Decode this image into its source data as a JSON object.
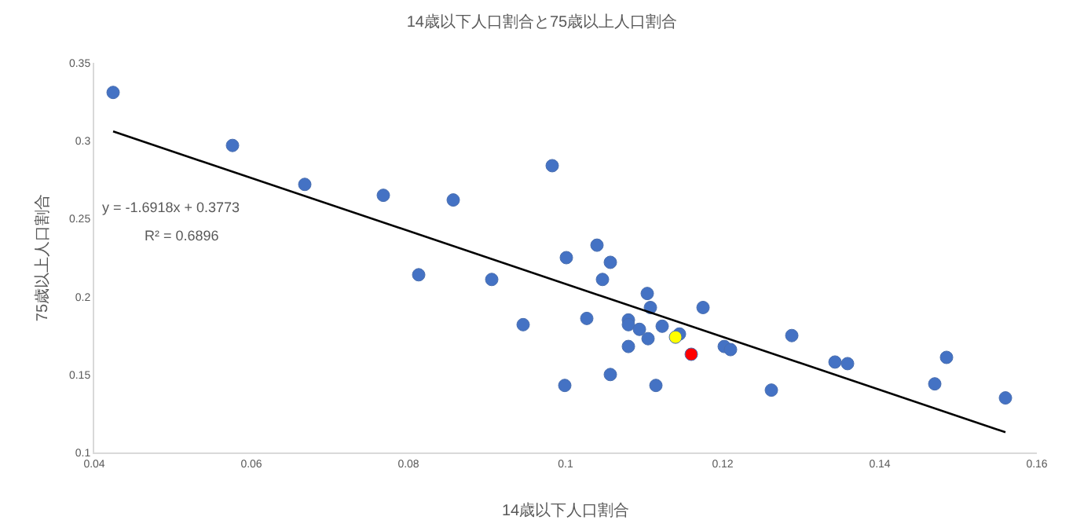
{
  "chart_data": {
    "type": "scatter",
    "title": "14歳以下人口割合と75歳以上人口割合",
    "xlabel": "14歳以下人口割合",
    "ylabel": "75歳以上人口割合",
    "xlim": [
      0.04,
      0.16
    ],
    "xticks": [
      0.04,
      0.06,
      0.08,
      0.1,
      0.12,
      0.14,
      0.16
    ],
    "ylim": [
      0.1,
      0.35
    ],
    "yticks": [
      0.1,
      0.15,
      0.2,
      0.25,
      0.3,
      0.35
    ],
    "grid": false,
    "marker": "circle",
    "series": [
      {
        "type": "scatter",
        "color": "#4472c4",
        "x": [
          0.0424,
          0.0576,
          0.0668,
          0.0768,
          0.0857,
          0.0813,
          0.0906,
          0.0946,
          0.0983,
          0.1001,
          0.0999,
          0.104,
          0.1057,
          0.1047,
          0.1027,
          0.1057,
          0.1104,
          0.1108,
          0.1175,
          0.108,
          0.108,
          0.1094,
          0.1105,
          0.1123,
          0.1145,
          0.108,
          0.1115,
          0.1202,
          0.121,
          0.1262,
          0.1288,
          0.1343,
          0.1359,
          0.147,
          0.1485,
          0.156
        ],
        "values": [
          0.331,
          0.297,
          0.272,
          0.265,
          0.262,
          0.214,
          0.211,
          0.182,
          0.284,
          0.225,
          0.143,
          0.233,
          0.222,
          0.211,
          0.186,
          0.15,
          0.202,
          0.193,
          0.193,
          0.185,
          0.182,
          0.179,
          0.173,
          0.181,
          0.176,
          0.168,
          0.143,
          0.168,
          0.166,
          0.14,
          0.175,
          0.158,
          0.157,
          0.144,
          0.161,
          0.135
        ]
      },
      {
        "type": "scatter",
        "color": "#ffff00",
        "x": [
          0.114
        ],
        "values": [
          0.174
        ]
      },
      {
        "type": "scatter",
        "color": "#ff0000",
        "x": [
          0.116
        ],
        "values": [
          0.163
        ]
      },
      {
        "type": "line",
        "color": "#000000",
        "marker": "none",
        "line_style": "solid",
        "x": [
          0.0424,
          0.156
        ],
        "values": [
          0.306,
          0.113
        ]
      }
    ],
    "annotations": [
      "y = -1.6918x + 0.3773",
      "R² = 0.6896"
    ]
  }
}
